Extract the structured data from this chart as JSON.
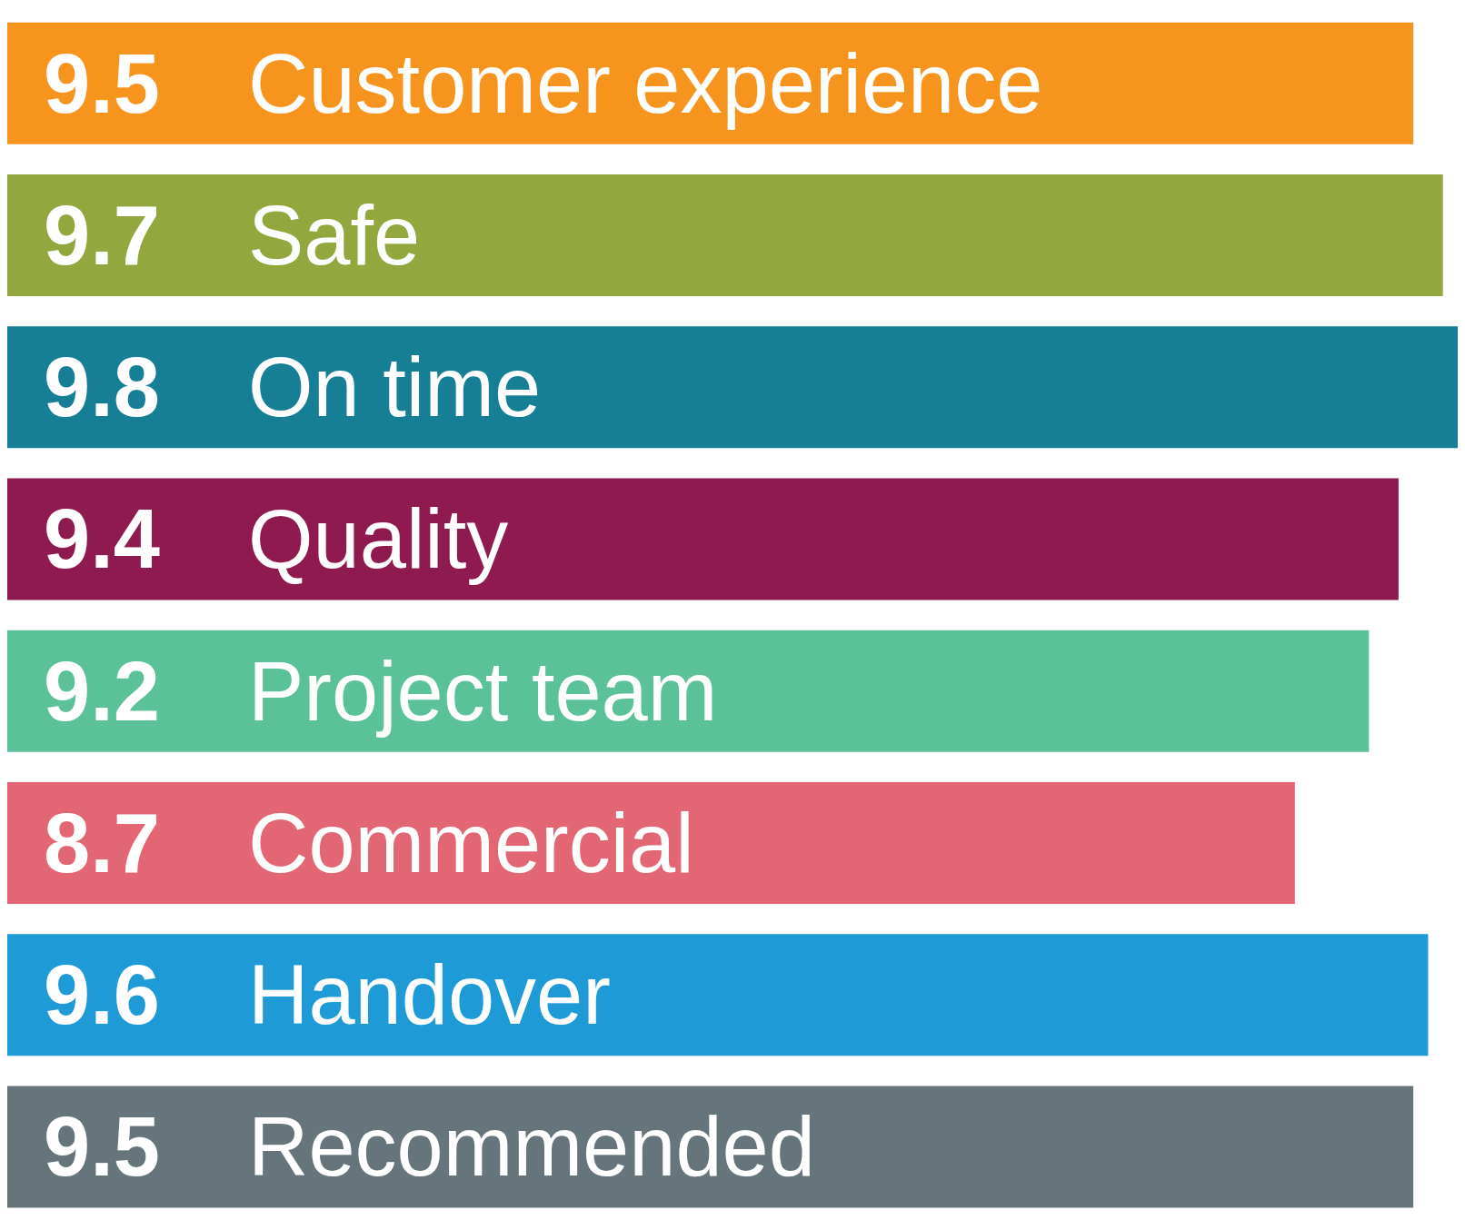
{
  "chart_data": {
    "type": "bar",
    "orientation": "horizontal",
    "categories": [
      "Customer experience",
      "Safe",
      "On time",
      "Quality",
      "Project team",
      "Commercial",
      "Handover",
      "Recommended"
    ],
    "values": [
      9.5,
      9.7,
      9.8,
      9.4,
      9.2,
      8.7,
      9.6,
      9.5
    ],
    "colors": [
      "#f7941d",
      "#92a83e",
      "#167f96",
      "#8e1a4f",
      "#5bc198",
      "#e26673",
      "#1e9ad6",
      "#66757c"
    ],
    "data_labels": true,
    "tick_labels": false,
    "grid": false,
    "legend": false
  }
}
